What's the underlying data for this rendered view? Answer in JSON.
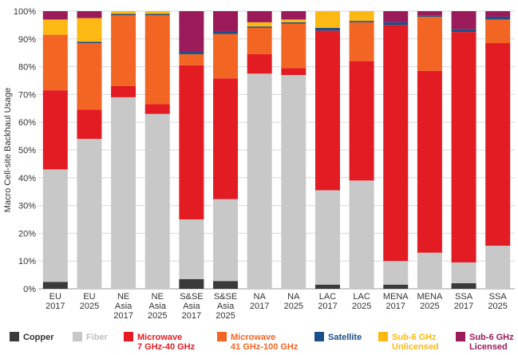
{
  "chart_data": {
    "type": "bar",
    "stacked": true,
    "ylabel": "Macro Cell-site Backhaul Usage",
    "ylim": [
      0,
      100
    ],
    "yticks": [
      "0%",
      "10%",
      "20%",
      "30%",
      "40%",
      "50%",
      "60%",
      "70%",
      "80%",
      "90%",
      "100%"
    ],
    "grid": true,
    "legend_position": "bottom",
    "categories": [
      [
        "EU",
        "2017"
      ],
      [
        "EU",
        "2025"
      ],
      [
        "NE",
        "Asia",
        "2017"
      ],
      [
        "NE",
        "Asia",
        "2025"
      ],
      [
        "S&SE",
        "Asia",
        "2017"
      ],
      [
        "S&SE",
        "Asia",
        "2025"
      ],
      [
        "NA",
        "2017"
      ],
      [
        "NA",
        "2025"
      ],
      [
        "LAC",
        "2017"
      ],
      [
        "LAC",
        "2025"
      ],
      [
        "MENA",
        "2017"
      ],
      [
        "MENA",
        "2025"
      ],
      [
        "SSA",
        "2017"
      ],
      [
        "SSA",
        "2025"
      ]
    ],
    "series": [
      {
        "name": [
          "Copper"
        ],
        "color": "#3a3a3a",
        "label_color": "#333333",
        "values": [
          2.5,
          0,
          0,
          0,
          3.5,
          2.8,
          0,
          0,
          1.5,
          0,
          1.5,
          0,
          2,
          0
        ]
      },
      {
        "name": [
          "Fiber"
        ],
        "color": "#c8c8c8",
        "label_color": "#c0c0c0",
        "values": [
          40.5,
          54,
          69,
          63,
          21.5,
          29.5,
          77.5,
          77,
          34,
          39,
          8.5,
          13,
          7.5,
          15.5
        ]
      },
      {
        "name": [
          "Microwave",
          "7 GHz-40 GHz"
        ],
        "color": "#e31b23",
        "label_color": "#e31b23",
        "values": [
          28.5,
          10.5,
          4,
          3.5,
          55.5,
          43.5,
          7,
          2.5,
          57.5,
          43,
          85,
          65.5,
          83,
          73
        ]
      },
      {
        "name": [
          "Microwave",
          "41 GHz-100 GHz"
        ],
        "color": "#f26522",
        "label_color": "#f26522",
        "values": [
          20,
          24,
          25.5,
          32,
          4,
          16,
          9.5,
          16,
          0,
          14,
          0,
          19.5,
          0,
          8.5
        ]
      },
      {
        "name": [
          "Satellite"
        ],
        "color": "#1b4f8a",
        "label_color": "#1b4f8a",
        "values": [
          0,
          0.5,
          0.5,
          0.5,
          1,
          1,
          0.5,
          0.5,
          1,
          0.5,
          1,
          0.5,
          1,
          1
        ]
      },
      {
        "name": [
          "Sub-6 GHz",
          "Unlicensed"
        ],
        "color": "#fdb913",
        "label_color": "#fdb913",
        "values": [
          5.5,
          8.5,
          1,
          1,
          0,
          0,
          1.5,
          1,
          6,
          3.5,
          0,
          0,
          0,
          0
        ]
      },
      {
        "name": [
          "Sub-6 GHz",
          "Licensed"
        ],
        "color": "#9b1b5a",
        "label_color": "#9b1b5a",
        "values": [
          3,
          2.5,
          0,
          0,
          14.5,
          7.2,
          4,
          3,
          0,
          0,
          4,
          1.5,
          6.5,
          2
        ]
      }
    ]
  }
}
